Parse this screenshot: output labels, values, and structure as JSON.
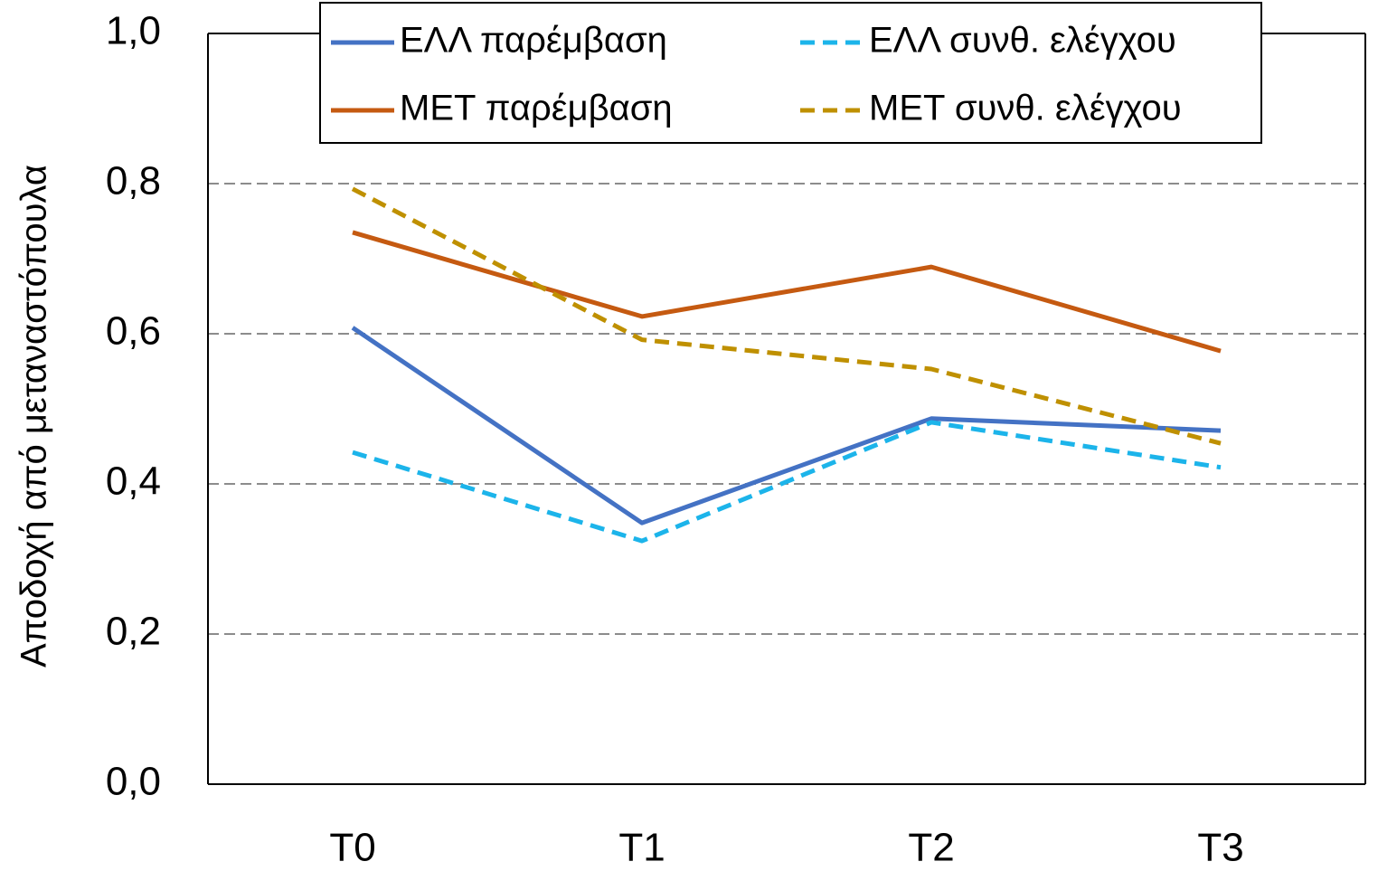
{
  "chart_data": {
    "type": "line",
    "y_label": "Αποδοχή από μεταναστόπουλα",
    "categories": [
      "T0",
      "T1",
      "T2",
      "T3"
    ],
    "series": [
      {
        "name": "ΕΛΛ παρέμβαση",
        "color": "#4472c4",
        "dashed": false,
        "values": [
          0.608,
          0.348,
          0.487,
          0.471
        ]
      },
      {
        "name": "ΕΛΛ συνθ. ελέγχου",
        "color": "#1cb4ea",
        "dashed": true,
        "values": [
          0.442,
          0.324,
          0.482,
          0.422
        ]
      },
      {
        "name": "ΜΕΤ παρέμβαση",
        "color": "#c55a11",
        "dashed": false,
        "values": [
          0.735,
          0.623,
          0.689,
          0.577
        ]
      },
      {
        "name": "ΜΕΤ συνθ. ελέγχου",
        "color": "#bf9000",
        "dashed": true,
        "values": [
          0.793,
          0.592,
          0.553,
          0.454
        ]
      }
    ],
    "ylim": [
      0,
      1
    ],
    "yticks": [
      {
        "value": 0,
        "label": "0,0"
      },
      {
        "value": 0.2,
        "label": "0,2"
      },
      {
        "value": 0.4,
        "label": "0,4"
      },
      {
        "value": 0.6,
        "label": "0,6"
      },
      {
        "value": 0.8,
        "label": "0,8"
      },
      {
        "value": 1,
        "label": "1,0"
      }
    ],
    "grid": true,
    "legend": "top"
  }
}
